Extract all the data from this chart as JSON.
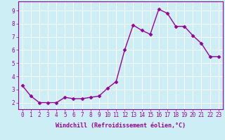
{
  "x": [
    0,
    1,
    2,
    3,
    4,
    5,
    6,
    7,
    8,
    9,
    10,
    11,
    12,
    13,
    14,
    15,
    16,
    17,
    18,
    19,
    20,
    21,
    22,
    23
  ],
  "y": [
    3.3,
    2.5,
    2.0,
    2.0,
    2.0,
    2.4,
    2.3,
    2.3,
    2.4,
    2.5,
    3.1,
    3.6,
    6.0,
    7.9,
    7.5,
    7.2,
    9.1,
    8.8,
    7.8,
    7.8,
    7.1,
    6.5,
    5.5,
    5.5
  ],
  "xlabel": "Windchill (Refroidissement éolien,°C)",
  "xlim": [
    -0.5,
    23.5
  ],
  "ylim": [
    1.5,
    9.7
  ],
  "yticks": [
    2,
    3,
    4,
    5,
    6,
    7,
    8,
    9
  ],
  "xticks": [
    0,
    1,
    2,
    3,
    4,
    5,
    6,
    7,
    8,
    9,
    10,
    11,
    12,
    13,
    14,
    15,
    16,
    17,
    18,
    19,
    20,
    21,
    22,
    23
  ],
  "line_color": "#990099",
  "marker": "D",
  "marker_size": 2.5,
  "background_color": "#cceef4",
  "grid_color": "#ffffff",
  "tick_label_color": "#990099",
  "xlabel_color": "#990099",
  "tick_fontsize": 5.5,
  "xlabel_fontsize": 6.0,
  "linewidth": 1.0
}
